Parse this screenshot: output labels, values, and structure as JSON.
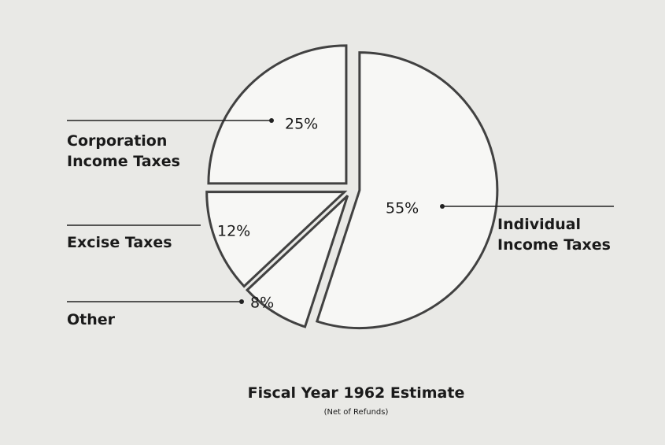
{
  "chart_data": {
    "type": "pie",
    "title": "Fiscal Year 1962 Estimate",
    "subtitle": "(Net of Refunds)",
    "categories": [
      "Individual Income Taxes",
      "Corporation Income Taxes",
      "Excise Taxes",
      "Other"
    ],
    "values": [
      55,
      25,
      12,
      8
    ],
    "value_labels": [
      "55%",
      "25%",
      "12%",
      "8%"
    ],
    "color": "#f7f7f5"
  }
}
